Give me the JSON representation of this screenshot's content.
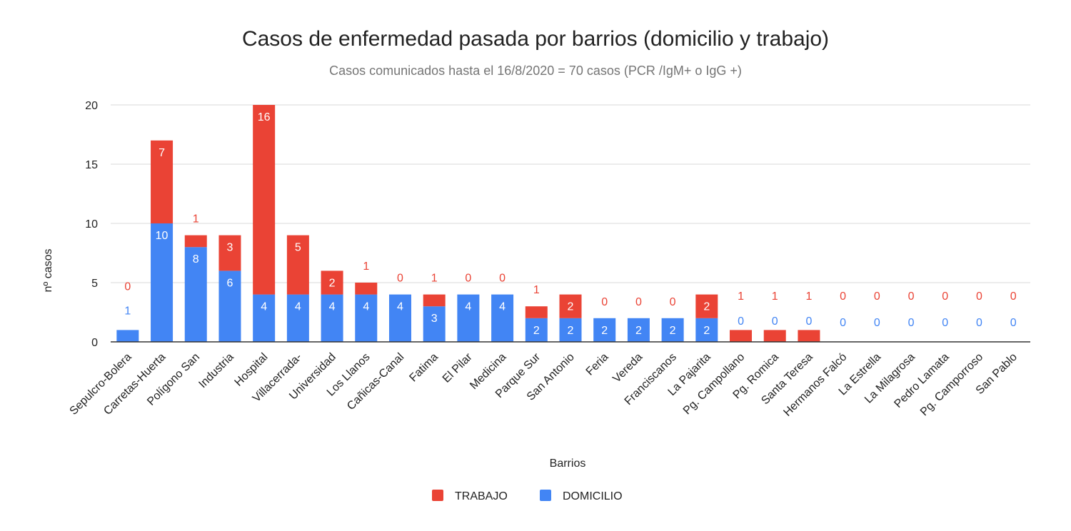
{
  "chart_data": {
    "type": "bar",
    "stacked": true,
    "title": "Casos de enfermedad pasada por barrios (domicilio y trabajo)",
    "subtitle": "Casos comunicados hasta el 16/8/2020 = 70 casos (PCR /IgM+ o IgG +)",
    "xlabel": "Barrios",
    "ylabel": "nº casos",
    "ylim": [
      0,
      20
    ],
    "yticks": [
      0,
      5,
      10,
      15,
      20
    ],
    "grid": true,
    "legend_position": "bottom",
    "categories": [
      "Sepulcro-Bolera",
      "Carretas-Huerta",
      "Polígono San",
      "Industria",
      "Hospital",
      "Villacerrada-",
      "Universidad",
      "Los Llanos",
      "Cañicas-Canal",
      "Fatima",
      "El Pilar",
      "Medicina",
      "Parque Sur",
      "San Antonio",
      "Feria",
      "Vereda",
      "Franciscanos",
      "La Pajarita",
      "Pg. Campollano",
      "Pg. Romica",
      "Santa Teresa",
      "Hermanos Falcó",
      "La Estrella",
      "La Milagrosa",
      "Pedro Lamata",
      "Pg. Camporroso",
      "San Pablo"
    ],
    "series": [
      {
        "name": "DOMICILIO",
        "color": "#4285f4",
        "label_color": "#4285f4",
        "values": [
          1,
          10,
          8,
          6,
          4,
          4,
          4,
          4,
          4,
          3,
          4,
          4,
          2,
          2,
          2,
          2,
          2,
          2,
          0,
          0,
          0,
          0,
          0,
          0,
          0,
          0,
          0
        ]
      },
      {
        "name": "TRABAJO",
        "color": "#ea4335",
        "label_color": "#ea4335",
        "values": [
          0,
          7,
          1,
          3,
          16,
          5,
          2,
          1,
          0,
          1,
          0,
          0,
          1,
          2,
          0,
          0,
          0,
          2,
          1,
          1,
          1,
          0,
          0,
          0,
          0,
          0,
          0
        ]
      }
    ],
    "legend": [
      "TRABAJO",
      "DOMICILIO"
    ]
  }
}
